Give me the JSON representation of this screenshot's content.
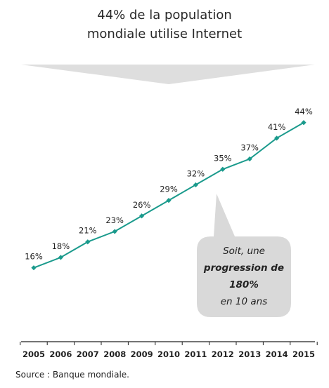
{
  "header": {
    "title_line1": "44% de la population",
    "title_line2": "mondiale utilise Internet"
  },
  "callout": {
    "line1": "Soit, une",
    "line2": "progression de",
    "line3": "180%",
    "line4": "en 10 ans"
  },
  "source": "Source : Banque mondiale.",
  "colors": {
    "line": "#1a9a8c",
    "arrow_band": "#dedede",
    "callout_bg": "#d9d9d9",
    "axis": "#222222"
  },
  "chart_data": {
    "type": "line",
    "title": "44% de la population mondiale utilise Internet",
    "x": [
      "2005",
      "2006",
      "2007",
      "2008",
      "2009",
      "2010",
      "2011",
      "2012",
      "2013",
      "2014",
      "2015"
    ],
    "values": [
      16,
      18,
      21,
      23,
      26,
      29,
      32,
      35,
      37,
      41,
      44
    ],
    "data_labels": [
      "16%",
      "18%",
      "21%",
      "23%",
      "26%",
      "29%",
      "32%",
      "35%",
      "37%",
      "41%",
      "44%"
    ],
    "ylim": [
      10,
      46
    ],
    "grid": false,
    "xlabel": "",
    "ylabel": ""
  }
}
